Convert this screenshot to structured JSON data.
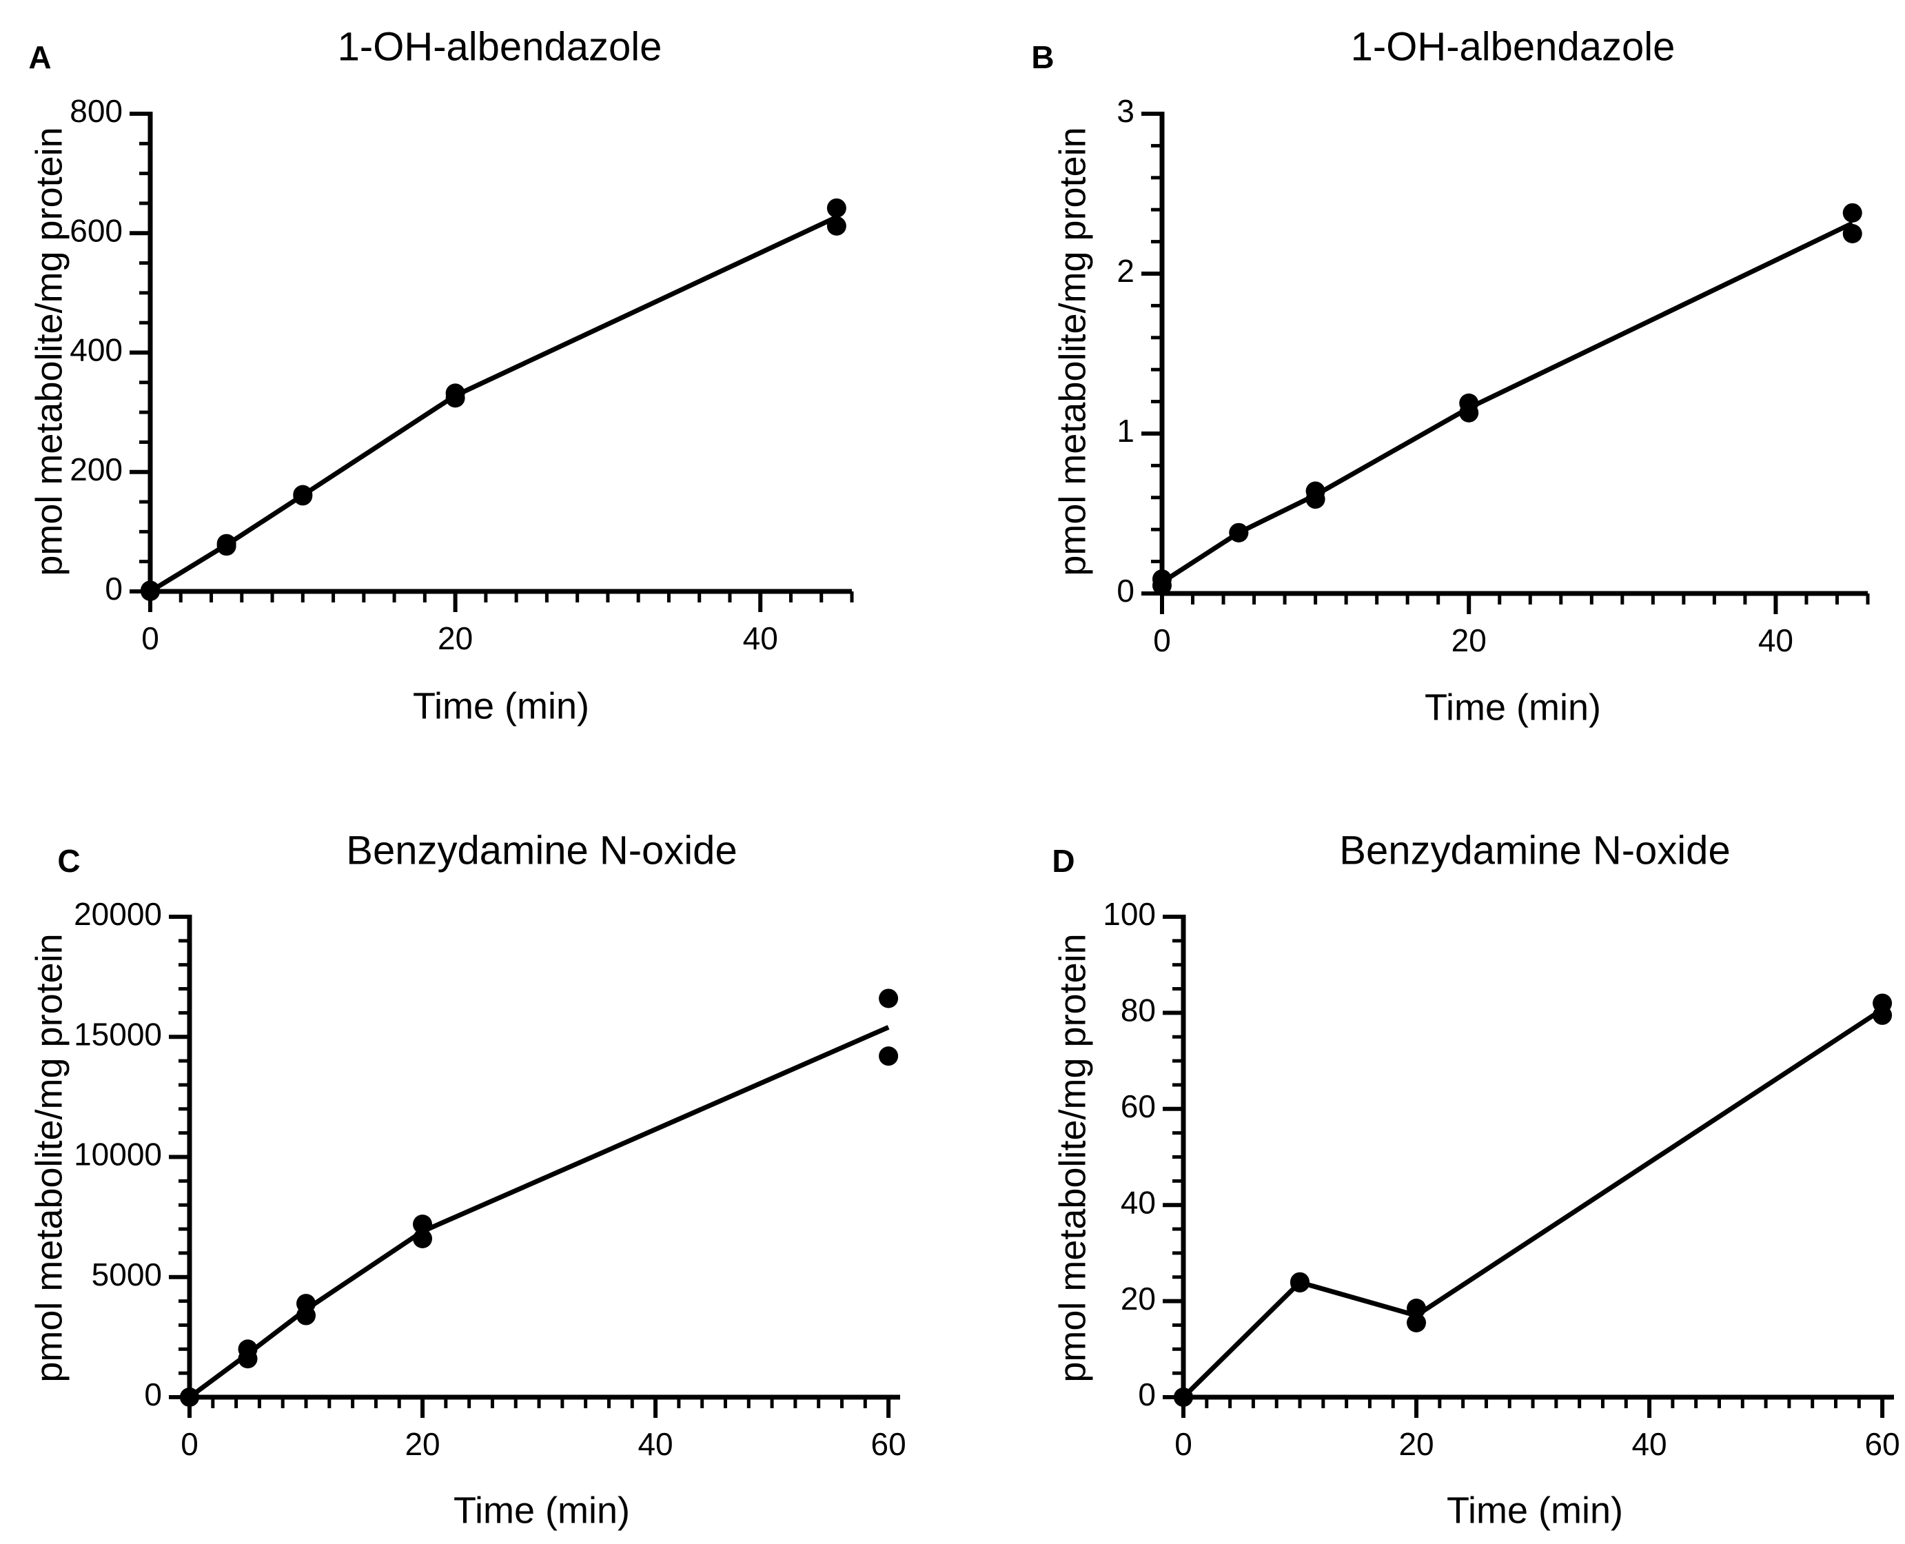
{
  "chart_data": [
    {
      "panel": "A",
      "type": "scatter",
      "title": "1-OH-albendazole",
      "xlabel": "Time (min)",
      "ylabel": "pmol metabolite/mg protein",
      "xlim": [
        0,
        46
      ],
      "ylim": [
        0,
        800
      ],
      "xticks": [
        0,
        20,
        40
      ],
      "yticks": [
        0,
        200,
        400,
        600,
        800
      ],
      "x_minor_step": 2,
      "y_minor_step": 50,
      "grid": false,
      "points": [
        [
          0,
          0
        ],
        [
          0,
          2
        ],
        [
          5,
          76
        ],
        [
          5,
          80
        ],
        [
          10,
          160
        ],
        [
          10,
          162
        ],
        [
          20,
          324
        ],
        [
          20,
          332
        ],
        [
          45,
          612
        ],
        [
          45,
          642
        ]
      ],
      "line": [
        [
          0,
          0
        ],
        [
          5,
          78
        ],
        [
          10,
          161
        ],
        [
          20,
          328
        ],
        [
          45,
          627
        ]
      ]
    },
    {
      "panel": "B",
      "type": "scatter",
      "title": "1-OH-albendazole",
      "xlabel": "Time (min)",
      "ylabel": "pmol metabolite/mg protein",
      "xlim": [
        0,
        46
      ],
      "ylim": [
        0,
        3
      ],
      "xticks": [
        0,
        20,
        40
      ],
      "yticks": [
        0,
        1,
        2,
        3
      ],
      "x_minor_step": 2,
      "y_minor_step": 0.2,
      "grid": false,
      "points": [
        [
          0,
          0.05
        ],
        [
          0,
          0.09
        ],
        [
          5,
          0.38
        ],
        [
          5,
          0.38
        ],
        [
          10,
          0.59
        ],
        [
          10,
          0.64
        ],
        [
          20,
          1.13
        ],
        [
          20,
          1.19
        ],
        [
          45,
          2.25
        ],
        [
          45,
          2.38
        ]
      ],
      "line": [
        [
          0,
          0.07
        ],
        [
          5,
          0.38
        ],
        [
          10,
          0.615
        ],
        [
          20,
          1.16
        ],
        [
          45,
          2.315
        ]
      ]
    },
    {
      "panel": "C",
      "type": "scatter",
      "title": "Benzydamine N-oxide",
      "xlabel": "Time (min)",
      "ylabel": "pmol metabolite/mg protein",
      "xlim": [
        0,
        61
      ],
      "ylim": [
        0,
        20000
      ],
      "xticks": [
        0,
        20,
        40,
        60
      ],
      "yticks": [
        0,
        5000,
        10000,
        15000,
        20000
      ],
      "x_minor_step": 2,
      "y_minor_step": 1000,
      "grid": false,
      "points": [
        [
          0,
          0
        ],
        [
          0,
          0
        ],
        [
          5,
          1600
        ],
        [
          5,
          2000
        ],
        [
          10,
          3400
        ],
        [
          10,
          3900
        ],
        [
          20,
          6600
        ],
        [
          20,
          7200
        ],
        [
          60,
          14200
        ],
        [
          60,
          16600
        ]
      ],
      "line": [
        [
          0,
          0
        ],
        [
          5,
          1800
        ],
        [
          10,
          3650
        ],
        [
          20,
          6900
        ],
        [
          60,
          15400
        ]
      ]
    },
    {
      "panel": "D",
      "type": "scatter",
      "title": "Benzydamine N-oxide",
      "xlabel": "Time (min)",
      "ylabel": "pmol metabolite/mg protein",
      "xlim": [
        0,
        61
      ],
      "ylim": [
        0,
        100
      ],
      "xticks": [
        0,
        20,
        40,
        60
      ],
      "yticks": [
        0,
        20,
        40,
        60,
        80,
        100
      ],
      "x_minor_step": 2,
      "y_minor_step": 5,
      "grid": false,
      "points": [
        [
          0,
          0
        ],
        [
          0,
          0
        ],
        [
          10,
          23.8
        ],
        [
          10,
          24
        ],
        [
          20,
          15.5
        ],
        [
          20,
          18.5
        ],
        [
          60,
          79.5
        ],
        [
          60,
          82
        ]
      ],
      "line": [
        [
          0,
          0
        ],
        [
          10,
          23.9
        ],
        [
          20,
          17
        ],
        [
          60,
          80.7
        ]
      ]
    }
  ]
}
